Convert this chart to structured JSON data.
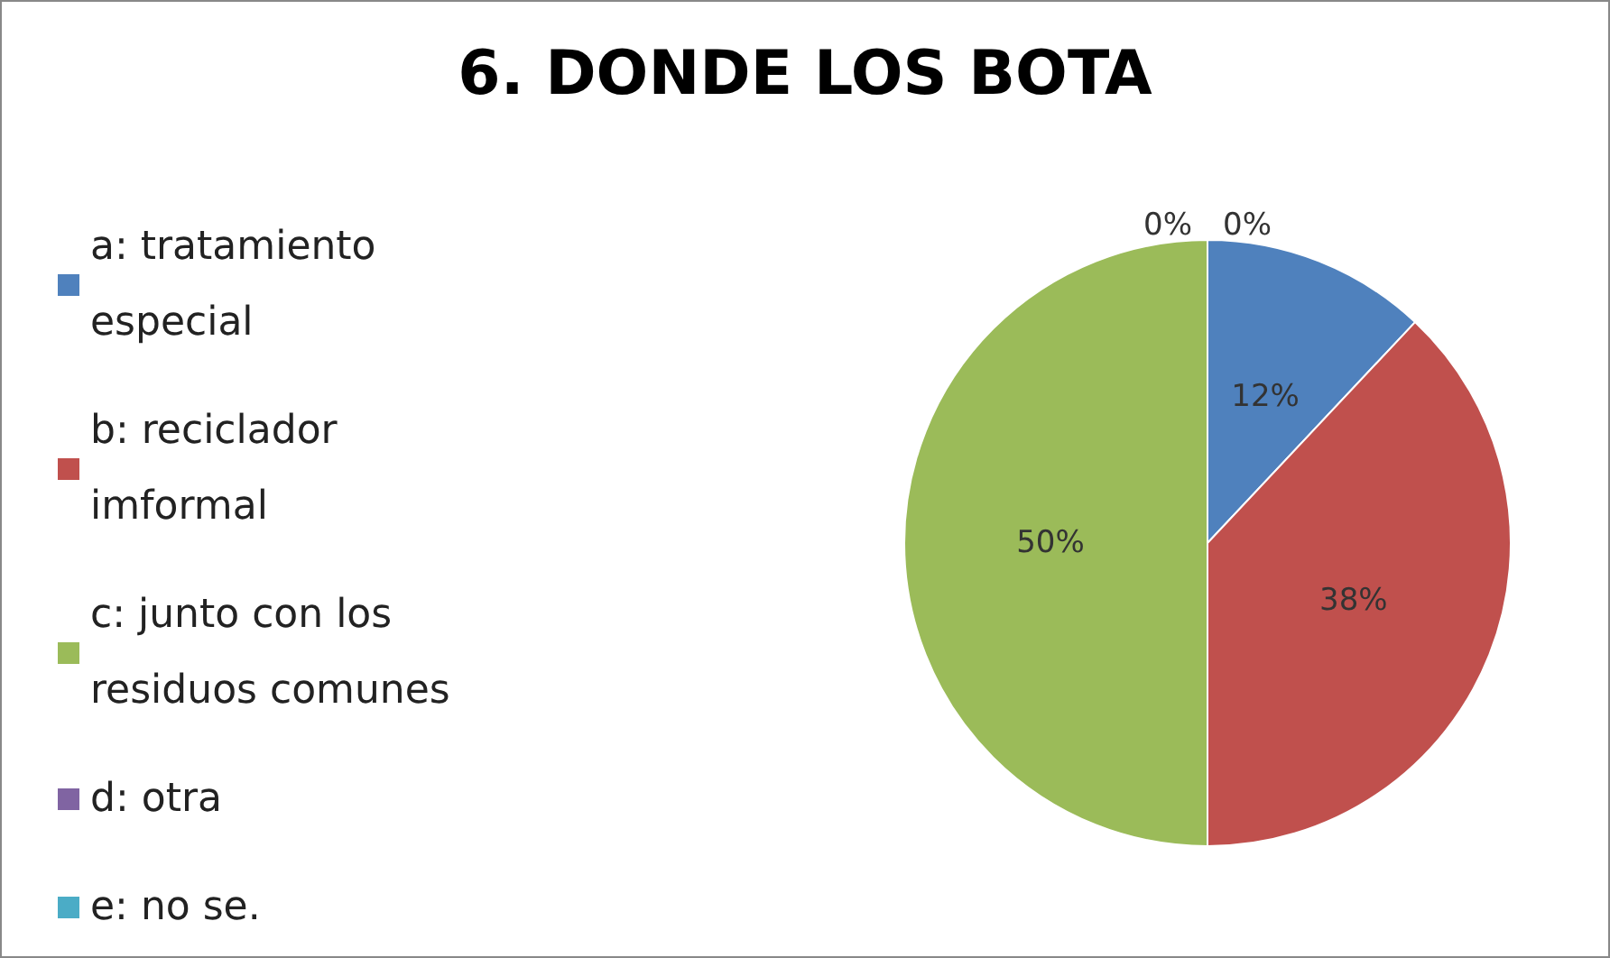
{
  "chart_data": {
    "type": "pie",
    "title": "6. DONDE LOS BOTA",
    "categories": [
      "a: tratamiento especial",
      "b: reciclador imformal",
      "c: junto con los residuos comunes",
      "d: otra",
      "e: no se."
    ],
    "values": [
      12,
      38,
      50,
      0,
      0
    ],
    "value_labels": [
      "12%",
      "38%",
      "50%",
      "0%",
      "0%"
    ],
    "colors": [
      "#4f81bd",
      "#c0504d",
      "#9bbb59",
      "#8064a2",
      "#4bacc6"
    ],
    "legend": "left"
  }
}
